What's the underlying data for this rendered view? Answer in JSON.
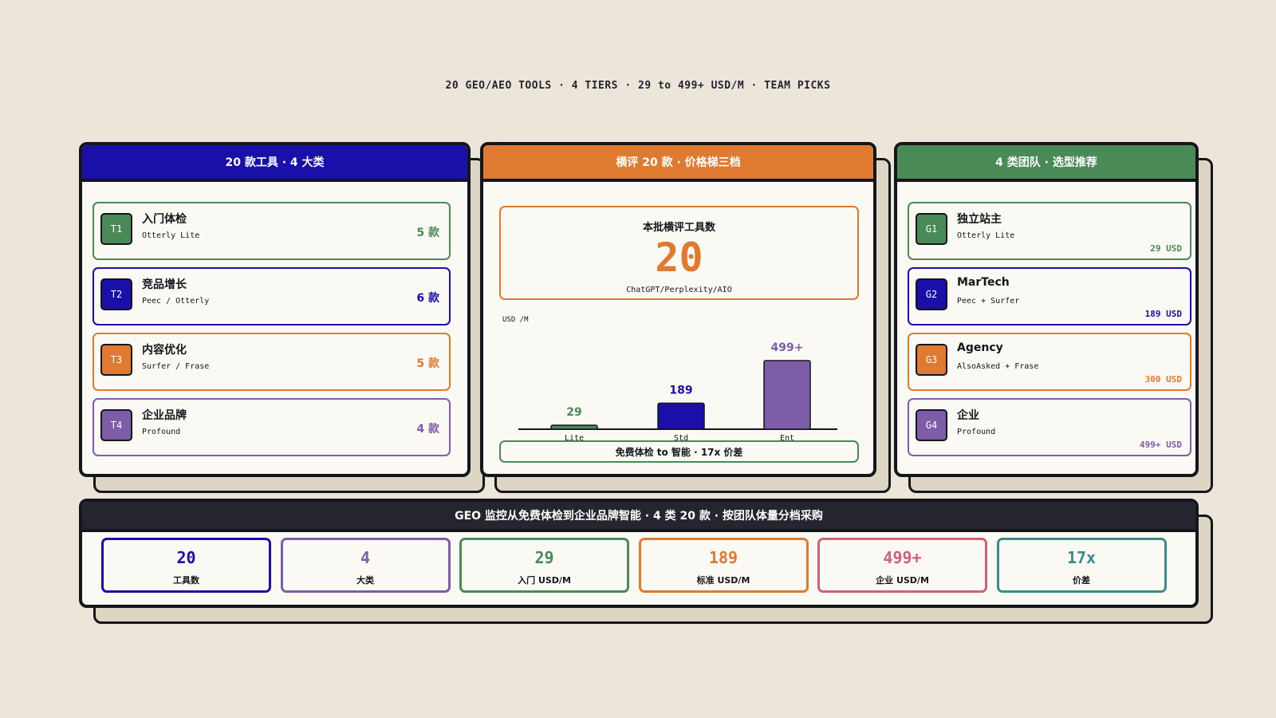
{
  "header": {
    "subtitle": "20 GEO/AEO TOOLS · 4 TIERS · 29 to 499+ USD/M · TEAM PICKS"
  },
  "tiers": {
    "title": "20 款工具 · 4 大类",
    "items": [
      {
        "badge": "T1",
        "name": "入门体检",
        "tools": "Otterly Lite",
        "count": "5 款",
        "color": "#4a8a57"
      },
      {
        "badge": "T2",
        "name": "竞品增长",
        "tools": "Peec / Otterly",
        "count": "6 款",
        "color": "#1a0fa8"
      },
      {
        "badge": "T3",
        "name": "内容优化",
        "tools": "Surfer / Frase",
        "count": "5 款",
        "color": "#e07a30"
      },
      {
        "badge": "T4",
        "name": "企业品牌",
        "tools": "Profound",
        "count": "4 款",
        "color": "#7d5ca8"
      }
    ]
  },
  "review": {
    "title": "横评 20 款 · 价格梯三档",
    "kpi_label": "本批横评工具数",
    "kpi_value": "20",
    "kpi_note": "ChatGPT/Perplexity/AIO",
    "chart": {
      "type": "bar",
      "y_label": "USD /M",
      "categories": [
        "Lite",
        "Std",
        "Ent"
      ],
      "values": [
        29,
        189,
        499
      ],
      "value_labels": [
        "29",
        "189",
        "499+"
      ],
      "colors": [
        "#4a8a57",
        "#1a0fa8",
        "#7d5ca8"
      ]
    },
    "footer": "免费体检 to 智能 · 17x 价差"
  },
  "teams": {
    "title": "4 类团队 · 选型推荐",
    "items": [
      {
        "badge": "G1",
        "name": "独立站主",
        "tools": "Otterly Lite",
        "price": "29 USD",
        "color": "#4a8a57"
      },
      {
        "badge": "G2",
        "name": "MarTech",
        "tools": "Peec + Surfer",
        "price": "189 USD",
        "color": "#1a0fa8"
      },
      {
        "badge": "G3",
        "name": "Agency",
        "tools": "AlsoAsked + Frase",
        "price": "300 USD",
        "color": "#e07a30"
      },
      {
        "badge": "G4",
        "name": "企业",
        "tools": "Profound",
        "price": "499+ USD",
        "color": "#7d5ca8"
      }
    ]
  },
  "summary": {
    "title": "GEO 监控从免费体检到企业品牌智能 · 4 类 20 款 · 按团队体量分档采购",
    "stats": [
      {
        "value": "20",
        "label": "工具数",
        "color": "#1a0fa8"
      },
      {
        "value": "4",
        "label": "大类",
        "color": "#7d5ca8"
      },
      {
        "value": "29",
        "label": "入门 USD/M",
        "color": "#4a8a57"
      },
      {
        "value": "189",
        "label": "标准 USD/M",
        "color": "#e07a30"
      },
      {
        "value": "499+",
        "label": "企业 USD/M",
        "color": "#d0607e"
      },
      {
        "value": "17x",
        "label": "价差",
        "color": "#3a8a8a"
      }
    ]
  }
}
